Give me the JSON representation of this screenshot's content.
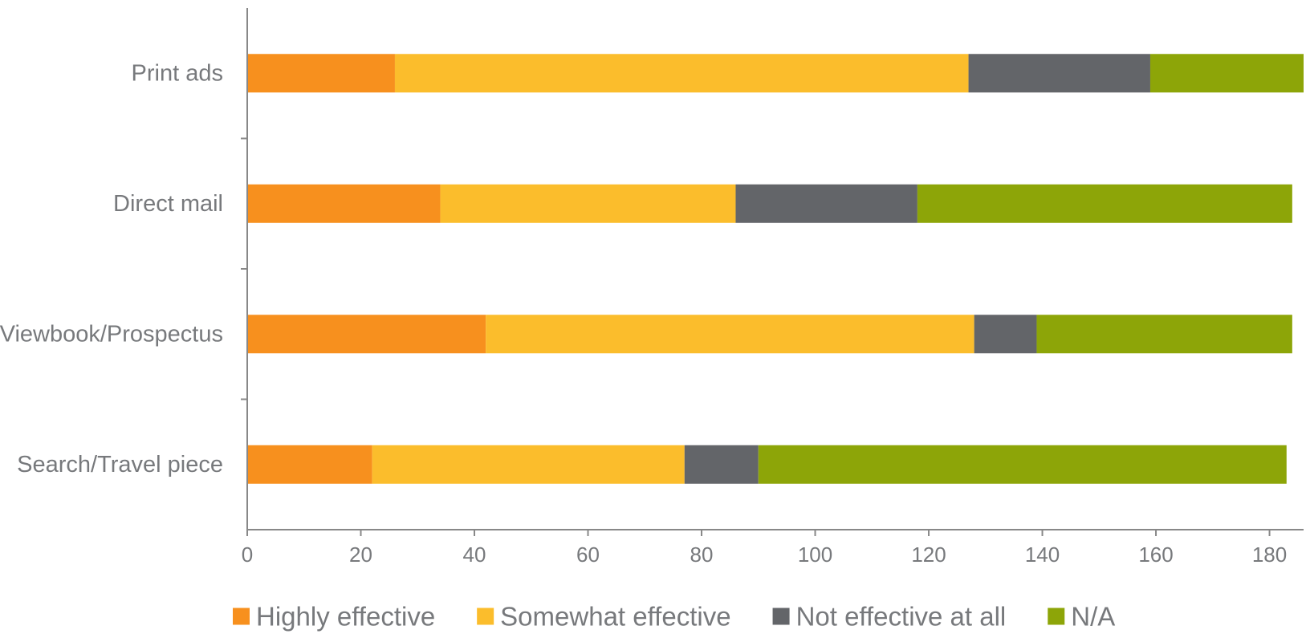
{
  "chart_data": {
    "type": "bar",
    "orientation": "horizontal",
    "stacked": true,
    "categories": [
      "Print ads",
      "Direct mail",
      "Viewbook/Prospectus",
      "Search/Travel piece"
    ],
    "series": [
      {
        "name": "Highly effective",
        "color": "#f7901e",
        "values": [
          26,
          34,
          42,
          22
        ]
      },
      {
        "name": "Somewhat effective",
        "color": "#fbbd2c",
        "values": [
          101,
          52,
          86,
          55
        ]
      },
      {
        "name": "Not effective at all",
        "color": "#636569",
        "values": [
          32,
          32,
          11,
          13
        ]
      },
      {
        "name": "N/A",
        "color": "#8da508",
        "values": [
          27,
          66,
          45,
          93
        ]
      }
    ],
    "xlim": [
      0,
      186
    ],
    "xticks": [
      "0",
      "20",
      "40",
      "60",
      "80",
      "100",
      "120",
      "140",
      "160",
      "180"
    ],
    "xtick_values": [
      0,
      20,
      40,
      60,
      80,
      100,
      120,
      140,
      160,
      180
    ],
    "grid": false,
    "legend_position": "bottom",
    "axis_color": "#888888",
    "title": "",
    "xlabel": "",
    "ylabel": ""
  }
}
